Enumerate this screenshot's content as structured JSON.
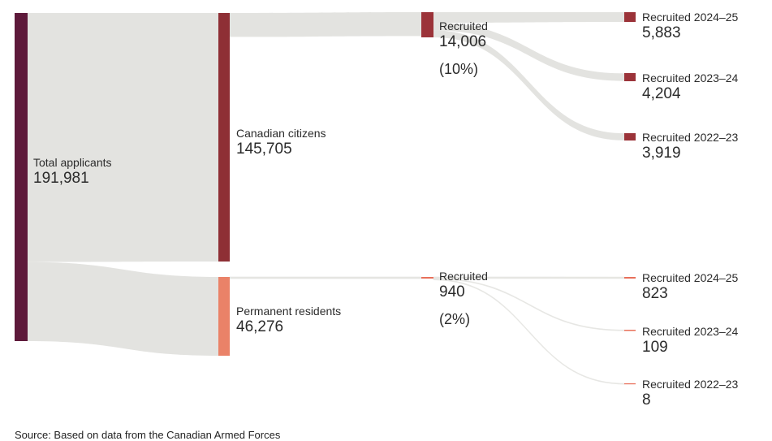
{
  "colors": {
    "flow": "#e3e3e0",
    "total": "#5e1a3b",
    "citizens": "#8e2f35",
    "residents": "#ea8268",
    "recruited_citizens": "#9b3339",
    "recruited_residents": "#e8705a"
  },
  "nodes": {
    "total": {
      "name": "Total applicants",
      "value": "191,981"
    },
    "citizens": {
      "name": "Canadian citizens",
      "value": "145,705"
    },
    "residents": {
      "name": "Permanent residents",
      "value": "46,276"
    },
    "rec_citizens": {
      "name": "Recruited",
      "value": "14,006",
      "pct": "(10%)"
    },
    "rec_residents": {
      "name": "Recruited",
      "value": "940",
      "pct": "(2%)"
    },
    "c_2425": {
      "name": "Recruited 2024–25",
      "value": "5,883"
    },
    "c_2324": {
      "name": "Recruited 2023–24",
      "value": "4,204"
    },
    "c_2223": {
      "name": "Recruited 2022–23",
      "value": "3,919"
    },
    "r_2425": {
      "name": "Recruited 2024–25",
      "value": "823"
    },
    "r_2324": {
      "name": "Recruited 2023–24",
      "value": "109"
    },
    "r_2223": {
      "name": "Recruited 2022–23",
      "value": "8"
    }
  },
  "flows": [
    {
      "from": "total",
      "to": "citizens",
      "value": 145705
    },
    {
      "from": "total",
      "to": "residents",
      "value": 46276
    },
    {
      "from": "citizens",
      "to": "rec_citizens",
      "value": 14006
    },
    {
      "from": "residents",
      "to": "rec_residents",
      "value": 940
    },
    {
      "from": "rec_citizens",
      "to": "c_2425",
      "value": 5883
    },
    {
      "from": "rec_citizens",
      "to": "c_2324",
      "value": 4204
    },
    {
      "from": "rec_citizens",
      "to": "c_2223",
      "value": 3919
    },
    {
      "from": "rec_residents",
      "to": "r_2425",
      "value": 823
    },
    {
      "from": "rec_residents",
      "to": "r_2324",
      "value": 109
    },
    {
      "from": "rec_residents",
      "to": "r_2223",
      "value": 8
    }
  ],
  "source": "Source: Based on data from the Canadian Armed Forces"
}
